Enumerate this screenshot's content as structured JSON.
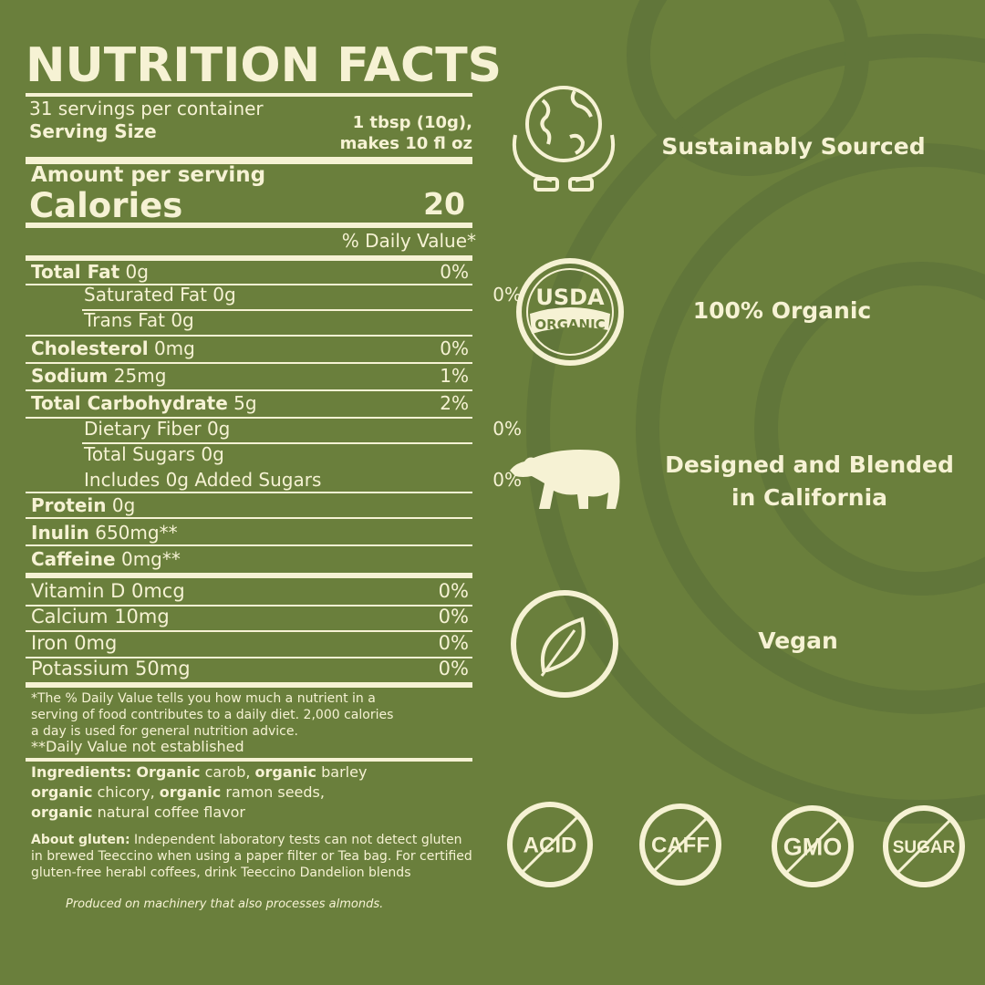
{
  "colors": {
    "background": "#6a7f3c",
    "foreground": "#f6f2d4"
  },
  "label": {
    "title": "NUTRITION FACTS",
    "servings": "31 servings per container",
    "serving_size_label": "Serving Size",
    "serving_size_line1": "1 tbsp (10g),",
    "serving_size_line2": "makes 10 fl oz",
    "amount_per_serving": "Amount per serving",
    "calories_label": "Calories",
    "calories_value": "20",
    "daily_value_header": "% Daily Value*",
    "nutrients": [
      {
        "name": "Total Fat",
        "amount": "0g",
        "dv": "0%"
      },
      {
        "name": "Saturated Fat 0g",
        "amount": "",
        "dv": "0%"
      },
      {
        "name": "Trans Fat 0g",
        "amount": "",
        "dv": ""
      },
      {
        "name": "Cholesterol",
        "amount": "0mg",
        "dv": "0%"
      },
      {
        "name": "Sodium",
        "amount": "25mg",
        "dv": "1%"
      },
      {
        "name": "Total Carbohydrate",
        "amount": "5g",
        "dv": "2%"
      },
      {
        "name": "Dietary Fiber 0g",
        "amount": "",
        "dv": "0%"
      },
      {
        "name": "Total Sugars 0g",
        "amount": "",
        "dv": ""
      },
      {
        "name": "Includes 0g Added Sugars",
        "amount": "",
        "dv": "0%"
      },
      {
        "name": "Protein",
        "amount": "0g",
        "dv": ""
      },
      {
        "name": "Inulin",
        "amount": "650mg**",
        "dv": ""
      },
      {
        "name": "Caffeine",
        "amount": "0mg**",
        "dv": ""
      }
    ],
    "vitamins": [
      {
        "name": "Vitamin D 0mcg",
        "dv": "0%"
      },
      {
        "name": "Calcium 10mg",
        "dv": "0%"
      },
      {
        "name": "Iron 0mg",
        "dv": "0%"
      },
      {
        "name": "Potassium 50mg",
        "dv": "0%"
      }
    ],
    "footnote_1": "*The % Daily Value tells you how much a nutrient in a",
    "footnote_2": "serving of food contributes to a daily diet. 2,000 calories",
    "footnote_3": "a day is used for general nutrition advice.",
    "footnote_4": "**Daily Value not established",
    "ingredients_label": "Ingredients:",
    "ingredients": [
      {
        "bold": "Organic",
        "text": " carob, "
      },
      {
        "bold": "organic",
        "text": " barley"
      },
      {
        "bold": "organic",
        "text": " chicory, "
      },
      {
        "bold": "organic",
        "text": " ramon seeds,"
      },
      {
        "bold": "organic",
        "text": " natural coffee flavor"
      }
    ],
    "gluten_label": "About gluten:",
    "gluten_1": " Independent laboratory tests can not detect gluten",
    "gluten_2": "in brewed Teeccino when using a paper filter or Tea bag. For certified",
    "gluten_3": "gluten-free herabl coffees, drink Teeccino Dandelion blends",
    "allergen": "Produced on machinery that also processes almonds."
  },
  "claims": [
    {
      "icon": "globe-in-hands-icon",
      "text": "Sustainably Sourced"
    },
    {
      "icon": "usda-organic-seal-icon",
      "text": "100% Organic",
      "seal_top": "USDA",
      "seal_bottom": "ORGANIC"
    },
    {
      "icon": "bear-icon",
      "text_1": "Designed and Blended",
      "text_2": "in California"
    },
    {
      "icon": "leaf-icon",
      "text": "Vegan"
    }
  ],
  "free_badges": [
    "ACID",
    "CAFF",
    "GMO",
    "SUGAR"
  ]
}
